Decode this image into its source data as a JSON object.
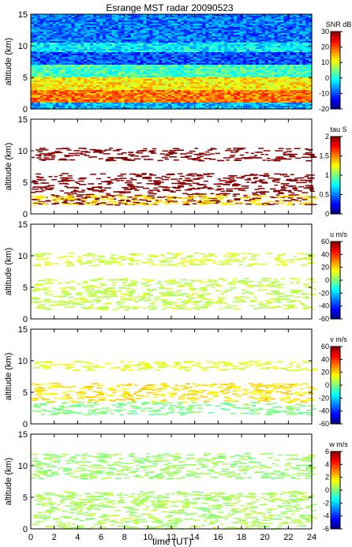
{
  "chart_data": [
    {
      "type": "heatmap",
      "title": "Esrange MST radar 20090523",
      "ylabel": "altitude (km)",
      "xlabel": "",
      "x_ticks": [],
      "ylim": [
        0,
        15
      ],
      "y_ticks": [
        "0",
        "5",
        "10",
        "15"
      ],
      "colorbar": {
        "label": "SNR dB",
        "range": [
          -20,
          30
        ],
        "ticks": [
          "30",
          "20",
          "10",
          "0",
          "-10",
          "-20"
        ]
      },
      "layers": [
        {
          "name": "",
          "alt_range": [
            0,
            1
          ],
          "value": -5
        },
        {
          "name": "",
          "alt_range": [
            1,
            3
          ],
          "value": 18
        },
        {
          "name": "",
          "alt_range": [
            3,
            5
          ],
          "value": 12
        },
        {
          "name": "",
          "alt_range": [
            5,
            7
          ],
          "value": 2
        },
        {
          "name": "",
          "alt_range": [
            7,
            9
          ],
          "value": -10
        },
        {
          "name": "",
          "alt_range": [
            9,
            10.5
          ],
          "value": -2
        },
        {
          "name": "",
          "alt_range": [
            10.5,
            15
          ],
          "value": -8
        }
      ]
    },
    {
      "type": "heatmap",
      "title": "",
      "ylabel": "altitude (km)",
      "xlabel": "",
      "x_ticks": [],
      "ylim": [
        0,
        15
      ],
      "y_ticks": [
        "0",
        "5",
        "10",
        "15"
      ],
      "colorbar": {
        "label": "tau S",
        "range": [
          0,
          2
        ],
        "ticks": [
          "2",
          "1.5",
          "1",
          "0.5",
          "0"
        ]
      },
      "layers": [
        {
          "name": "",
          "alt_range": [
            1.5,
            6.5
          ],
          "value": 2.0
        },
        {
          "name": "",
          "alt_range": [
            8.5,
            10.5
          ],
          "value": 2.0
        },
        {
          "name": "",
          "alt_range": [
            1.5,
            3
          ],
          "value": 1.3
        }
      ]
    },
    {
      "type": "heatmap",
      "title": "",
      "ylabel": "altitude (km)",
      "xlabel": "",
      "x_ticks": [],
      "ylim": [
        0,
        15
      ],
      "y_ticks": [
        "0",
        "5",
        "10",
        "15"
      ],
      "colorbar": {
        "label": "u m/s",
        "range": [
          -60,
          60
        ],
        "ticks": [
          "60",
          "40",
          "20",
          "0",
          "-20",
          "-40",
          "-60"
        ]
      },
      "layers": [
        {
          "name": "",
          "alt_range": [
            1.5,
            6.5
          ],
          "value": 8
        },
        {
          "name": "",
          "alt_range": [
            8.5,
            10.5
          ],
          "value": 10
        }
      ]
    },
    {
      "type": "heatmap",
      "title": "",
      "ylabel": "altitude (km)",
      "xlabel": "",
      "x_ticks": [],
      "ylim": [
        0,
        15
      ],
      "y_ticks": [
        "0",
        "5",
        "10",
        "15"
      ],
      "colorbar": {
        "label": "v m/s",
        "range": [
          -60,
          60
        ],
        "ticks": [
          "60",
          "40",
          "20",
          "0",
          "-20",
          "-40",
          "-60"
        ]
      },
      "layers": [
        {
          "name": "",
          "alt_range": [
            3.5,
            6.5
          ],
          "value": 18
        },
        {
          "name": "",
          "alt_range": [
            1.5,
            3.5
          ],
          "value": 0
        },
        {
          "name": "",
          "alt_range": [
            8.5,
            10
          ],
          "value": 12
        }
      ]
    },
    {
      "type": "heatmap",
      "title": "",
      "ylabel": "altitude (km)",
      "xlabel": "time (UT)",
      "x_ticks": [
        "0",
        "2",
        "4",
        "6",
        "8",
        "10",
        "12",
        "14",
        "16",
        "18",
        "20",
        "22",
        "24"
      ],
      "ylim": [
        0,
        15
      ],
      "y_ticks": [
        "0",
        "5",
        "10",
        "15"
      ],
      "colorbar": {
        "label": "w m/s",
        "range": [
          -6,
          6
        ],
        "ticks": [
          "6",
          "4",
          "2",
          "0",
          "-2",
          "-4",
          "-6"
        ]
      },
      "layers": [
        {
          "name": "",
          "alt_range": [
            0,
            6
          ],
          "value": 0.5
        },
        {
          "name": "",
          "alt_range": [
            8,
            12
          ],
          "value": 0.3
        }
      ]
    }
  ]
}
